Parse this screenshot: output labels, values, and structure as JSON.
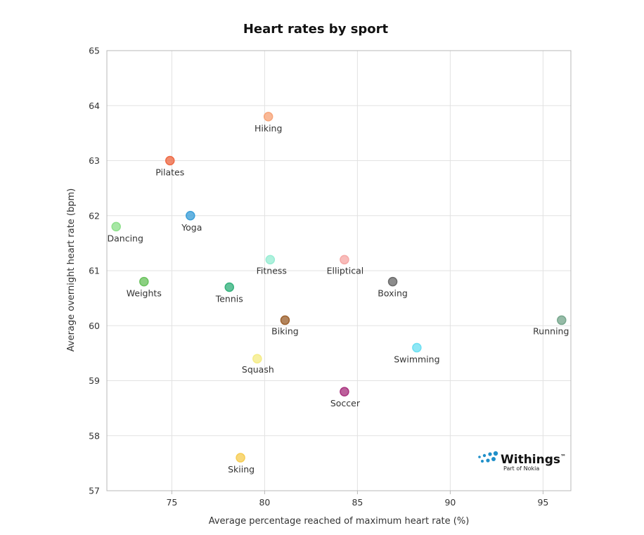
{
  "chart_data": {
    "type": "scatter",
    "title": "Heart rates by sport",
    "xlabel": "Average percentage reached of maximum heart rate (%)",
    "ylabel": "Average overnight heart rate (bpm)",
    "xlim": [
      71.5,
      96.5
    ],
    "ylim": [
      57,
      65
    ],
    "xticks": [
      75,
      80,
      85,
      90,
      95
    ],
    "yticks": [
      57,
      58,
      59,
      60,
      61,
      62,
      63,
      64,
      65
    ],
    "grid": true,
    "legend": "none",
    "points": [
      {
        "label": "Hiking",
        "x": 80.2,
        "y": 63.8,
        "color": "#f7a57a"
      },
      {
        "label": "Pilates",
        "x": 74.9,
        "y": 63.0,
        "color": "#ee6a45"
      },
      {
        "label": "Yoga",
        "x": 76.0,
        "y": 62.0,
        "color": "#3c9fd8"
      },
      {
        "label": "Dancing",
        "x": 72.0,
        "y": 61.8,
        "color": "#8ee08c"
      },
      {
        "label": "Fitness",
        "x": 80.3,
        "y": 61.2,
        "color": "#98edd4"
      },
      {
        "label": "Elliptical",
        "x": 84.3,
        "y": 61.2,
        "color": "#f6a9a7"
      },
      {
        "label": "Weights",
        "x": 73.5,
        "y": 60.8,
        "color": "#6bc35f"
      },
      {
        "label": "Boxing",
        "x": 86.9,
        "y": 60.8,
        "color": "#6b6b6b"
      },
      {
        "label": "Tennis",
        "x": 78.1,
        "y": 60.7,
        "color": "#35b27d"
      },
      {
        "label": "Biking",
        "x": 81.1,
        "y": 60.1,
        "color": "#9e6330"
      },
      {
        "label": "Running",
        "x": 96.0,
        "y": 60.1,
        "color": "#78a88e"
      },
      {
        "label": "Swimming",
        "x": 88.2,
        "y": 59.6,
        "color": "#6ee0f2"
      },
      {
        "label": "Squash",
        "x": 79.6,
        "y": 59.4,
        "color": "#f5ec86"
      },
      {
        "label": "Soccer",
        "x": 84.3,
        "y": 58.8,
        "color": "#a9337f"
      },
      {
        "label": "Skiing",
        "x": 78.7,
        "y": 57.6,
        "color": "#f6cd55"
      }
    ]
  },
  "watermark": {
    "brand": "Withings",
    "tm": "™",
    "tagline": "Part of Nokia",
    "icon": "withings-dots-logo",
    "color": "#1f8fc9"
  }
}
